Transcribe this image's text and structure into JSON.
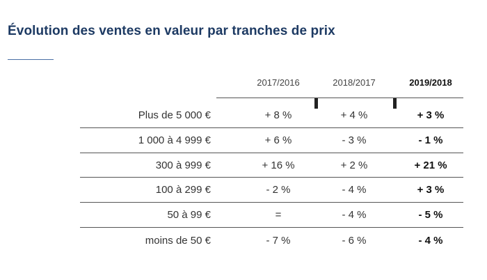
{
  "title": "Évolution des ventes en valeur par tranches de prix",
  "columns": [
    "2017/2016",
    "2018/2017",
    "2019/2018"
  ],
  "rows": [
    {
      "label": "Plus de 5 000 €",
      "values": [
        "+ 8 %",
        "+ 4 %",
        "+ 3 %"
      ]
    },
    {
      "label": "1 000 à 4 999 €",
      "values": [
        "+ 6 %",
        "- 3 %",
        "- 1 %"
      ]
    },
    {
      "label": "300 à 999 €",
      "values": [
        "+ 16 %",
        "+ 2 %",
        "+ 21 %"
      ]
    },
    {
      "label": "100 à 299 €",
      "values": [
        "- 2 %",
        "- 4 %",
        "+ 3 %"
      ]
    },
    {
      "label": "50 à 99 €",
      "values": [
        "=",
        "- 4 %",
        "- 5 %"
      ]
    },
    {
      "label": "moins de 50 €",
      "values": [
        "- 7 %",
        "- 6 %",
        "- 4 %"
      ]
    }
  ],
  "colors": {
    "title": "#1d3a63",
    "accent_line": "#4a6fa5",
    "rules": "#555555"
  }
}
